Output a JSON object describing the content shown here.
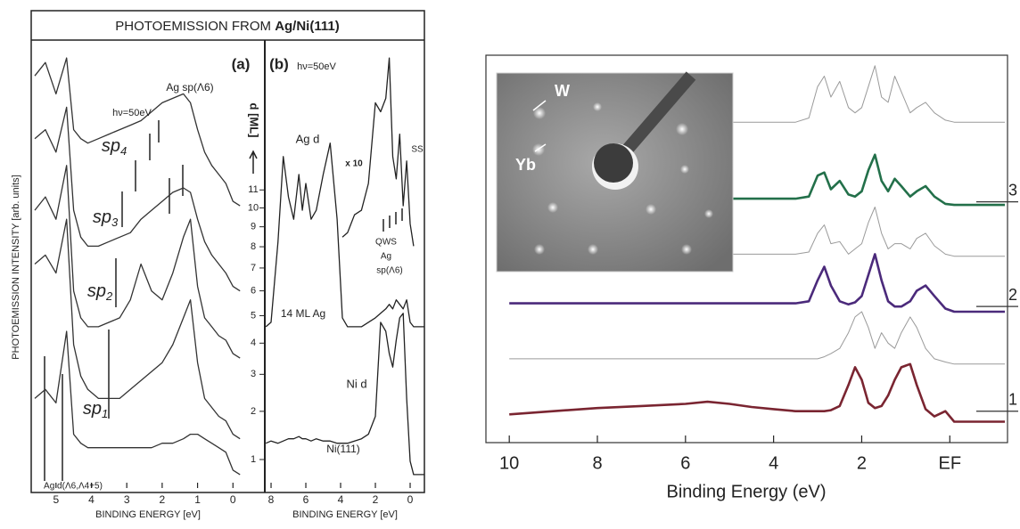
{
  "chart_data": [
    {
      "type": "line",
      "title": [
        "PHOTOEMISSION FROM",
        "Ag/Ni(111)"
      ],
      "panel_label": "(a)",
      "xlabel": "BINDING ENERGY [eV]",
      "ylabel": "PHOTOEMISSION INTENSITY [arb. units]",
      "y2label": "d [ML]",
      "xlim": [
        5.7,
        -0.9
      ],
      "xticks": [
        5,
        4,
        3,
        2,
        1,
        0
      ],
      "ylim": [
        0,
        100
      ],
      "y2lim": [
        0.57,
        21.2
      ],
      "y2scale": "sqrt",
      "y2ticks": [
        1,
        2,
        3,
        4,
        5,
        6,
        7,
        8,
        9,
        10,
        11
      ],
      "annotations": [
        "hν=50eV",
        "Ag sp(Λ6)",
        "Ag d(Λ6,Λ4+5)"
      ],
      "sp_labels": [
        {
          "text": "sp",
          "sub": "4"
        },
        {
          "text": "sp",
          "sub": "3"
        },
        {
          "text": "sp",
          "sub": "2"
        },
        {
          "text": "sp",
          "sub": "1"
        }
      ],
      "x": [
        5.6,
        5.3,
        5.0,
        4.7,
        4.5,
        4.3,
        4.1,
        3.8,
        3.5,
        3.2,
        2.9,
        2.6,
        2.3,
        2.0,
        1.7,
        1.4,
        1.2,
        1.0,
        0.8,
        0.6,
        0.4,
        0.2,
        0.0,
        -0.2
      ],
      "series": [
        {
          "color": "#333333",
          "values": [
            92,
            95,
            88,
            96,
            80,
            78,
            77,
            78,
            79,
            80,
            81,
            82,
            84,
            86,
            87,
            88,
            86,
            80,
            75,
            72,
            70,
            68,
            64,
            63
          ]
        },
        {
          "color": "#333333",
          "values": [
            78,
            80,
            75,
            85,
            62,
            56,
            54,
            54,
            55,
            56,
            57,
            60,
            62,
            64,
            66,
            67,
            66,
            60,
            55,
            52,
            50,
            48,
            45,
            44
          ]
        },
        {
          "color": "#333333",
          "values": [
            62,
            65,
            60,
            72,
            44,
            38,
            36,
            36,
            37,
            38,
            42,
            50,
            44,
            42,
            48,
            56,
            60,
            45,
            38,
            36,
            34,
            33,
            30,
            29
          ]
        },
        {
          "color": "#333333",
          "values": [
            50,
            52,
            48,
            60,
            32,
            25,
            22,
            20,
            20,
            20,
            22,
            24,
            26,
            28,
            32,
            38,
            42,
            28,
            20,
            18,
            16,
            15,
            12,
            11
          ]
        },
        {
          "color": "#333333",
          "values": [
            20,
            22,
            19,
            35,
            12,
            10,
            9,
            9,
            9,
            9,
            9,
            9,
            9,
            10,
            10,
            11,
            12,
            12,
            11,
            10,
            9,
            8,
            4,
            3
          ]
        }
      ]
    },
    {
      "type": "line",
      "panel_label": "(b)",
      "xlabel": "BINDING ENERGY [eV]",
      "xlim": [
        8.36,
        -0.82
      ],
      "xticks": [
        8,
        6,
        4,
        2,
        0
      ],
      "ylim": [
        0,
        100
      ],
      "annotations": [
        "hν=50eV",
        "Ag d",
        "QWS",
        "Ag",
        "sp(Λ6)",
        "SS",
        "Ni d"
      ],
      "x": [
        8.3,
        8.0,
        7.6,
        7.3,
        7.0,
        6.7,
        6.4,
        6.2,
        6.0,
        5.7,
        5.4,
        5.0,
        4.6,
        4.2,
        3.9,
        3.6,
        3.2,
        2.8,
        2.4,
        2.0,
        1.7,
        1.4,
        1.2,
        1.0,
        0.8,
        0.6,
        0.4,
        0.2,
        0.0,
        -0.2,
        -0.5,
        -0.8
      ],
      "series": [
        {
          "name": "14 ML Ag",
          "color": "#222222",
          "values": [
            36,
            37,
            55,
            74,
            65,
            60,
            70,
            62,
            68,
            60,
            62,
            70,
            77,
            60,
            38,
            36,
            36,
            36,
            37,
            38,
            39,
            40,
            41,
            40,
            42,
            41,
            40,
            42,
            37,
            36,
            36,
            36
          ]
        },
        {
          "name": "x 10",
          "color": "#222222",
          "values": [
            null,
            null,
            null,
            null,
            null,
            null,
            null,
            null,
            null,
            null,
            null,
            null,
            null,
            null,
            56,
            57,
            61,
            62,
            68,
            86,
            84,
            87,
            96,
            74,
            69,
            79,
            63,
            73,
            59,
            54,
            null,
            null
          ]
        },
        {
          "name": "Ni(111)",
          "color": "#222222",
          "values": [
            10,
            10.5,
            10,
            10.5,
            11,
            11,
            11.5,
            11,
            11,
            10.5,
            11,
            10.5,
            10.5,
            10,
            10,
            10,
            10.5,
            11,
            12,
            16,
            37,
            35,
            30,
            27,
            33,
            38,
            39,
            20,
            6,
            3,
            3,
            3
          ]
        }
      ]
    },
    {
      "type": "line",
      "xlabel": "Binding Energy (eV)",
      "xlim": [
        10.53,
        -1.31
      ],
      "xticks": [
        10,
        8,
        6,
        4,
        2,
        {
          "value": 0,
          "label": "EF"
        }
      ],
      "y2lim": [
        0.7,
        4.4
      ],
      "y2ticks": [
        1,
        2,
        3
      ],
      "inset_labels": [
        "W",
        "Yb"
      ],
      "x": [
        10,
        9,
        8,
        7,
        6,
        5.5,
        5,
        4.5,
        4,
        3.5,
        3.2,
        3.0,
        2.85,
        2.7,
        2.5,
        2.3,
        2.15,
        2.0,
        1.85,
        1.7,
        1.55,
        1.4,
        1.25,
        1.1,
        0.9,
        0.75,
        0.55,
        0.35,
        0.1,
        -0.1,
        -0.3,
        -0.7,
        -1.25
      ],
      "series": [
        {
          "axis": "y2",
          "color": "#9a9a9a",
          "values": [
            1.5,
            1.5,
            1.5,
            1.5,
            1.5,
            1.5,
            1.5,
            1.5,
            1.5,
            1.5,
            1.5,
            1.5,
            1.52,
            1.55,
            1.6,
            1.75,
            1.9,
            1.95,
            1.8,
            1.6,
            1.75,
            1.65,
            1.6,
            1.75,
            1.9,
            1.8,
            1.6,
            1.5,
            1.47,
            1.45,
            1.45,
            1.45,
            1.45
          ]
        },
        {
          "axis": "y2",
          "color": "#9a9a9a",
          "values": [
            2.5,
            2.5,
            2.5,
            2.5,
            2.5,
            2.5,
            2.5,
            2.5,
            2.5,
            2.5,
            2.52,
            2.7,
            2.78,
            2.6,
            2.62,
            2.5,
            2.55,
            2.6,
            2.8,
            2.95,
            2.7,
            2.55,
            2.6,
            2.6,
            2.55,
            2.65,
            2.7,
            2.58,
            2.5,
            2.48,
            2.48,
            2.48,
            2.48
          ]
        },
        {
          "axis": "y2",
          "color": "#9a9a9a",
          "values": [
            3.76,
            3.76,
            3.76,
            3.76,
            3.76,
            3.76,
            3.76,
            3.76,
            3.76,
            3.76,
            3.8,
            4.1,
            4.2,
            4.0,
            4.15,
            3.9,
            3.85,
            3.9,
            4.1,
            4.3,
            4.0,
            3.95,
            4.2,
            4.05,
            3.85,
            3.9,
            3.95,
            3.85,
            3.78,
            3.76,
            3.76,
            3.76,
            3.76
          ]
        },
        {
          "axis": "y2",
          "color": "#7a2531",
          "values": [
            0.97,
            1.0,
            1.03,
            1.05,
            1.07,
            1.09,
            1.07,
            1.04,
            1.02,
            1.0,
            1.0,
            1.0,
            1.0,
            1.01,
            1.05,
            1.25,
            1.42,
            1.3,
            1.08,
            1.03,
            1.05,
            1.15,
            1.3,
            1.42,
            1.45,
            1.25,
            1.02,
            0.95,
            1.0,
            0.9,
            0.9,
            0.9,
            0.9
          ]
        },
        {
          "axis": "y2",
          "color": "#4b2a7b",
          "values": [
            2.03,
            2.03,
            2.03,
            2.03,
            2.03,
            2.03,
            2.03,
            2.03,
            2.03,
            2.03,
            2.05,
            2.25,
            2.38,
            2.2,
            2.05,
            2.02,
            2.04,
            2.1,
            2.3,
            2.5,
            2.25,
            2.05,
            2.0,
            2.0,
            2.05,
            2.15,
            2.2,
            2.1,
            1.98,
            1.95,
            1.95,
            1.95,
            1.95
          ]
        },
        {
          "axis": "y2",
          "color": "#23704a",
          "values": [
            3.03,
            3.03,
            3.03,
            3.03,
            3.03,
            3.03,
            3.03,
            3.03,
            3.03,
            3.03,
            3.05,
            3.25,
            3.28,
            3.12,
            3.2,
            3.07,
            3.05,
            3.1,
            3.3,
            3.45,
            3.2,
            3.1,
            3.22,
            3.15,
            3.05,
            3.1,
            3.15,
            3.05,
            2.98,
            2.97,
            2.97,
            2.97,
            2.97
          ]
        }
      ]
    }
  ]
}
